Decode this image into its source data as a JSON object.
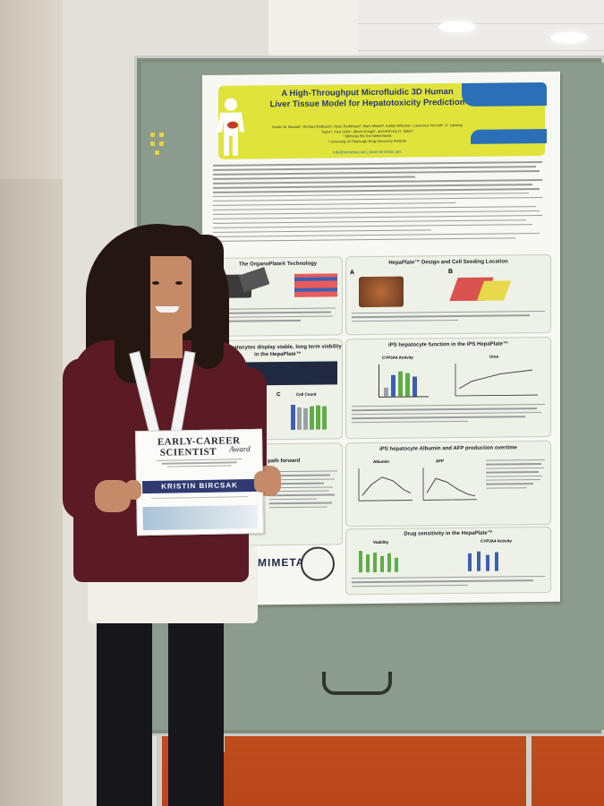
{
  "scene": {
    "colors": {
      "floor": "#c0501f",
      "board": "#8b9b8c",
      "poster_band": "#e0e33a",
      "poster_accent_blue": "#2a6fb8",
      "top": "#5a1b24",
      "cert_band": "#2f3a73"
    }
  },
  "poster": {
    "title_line1": "A High-Throughput Microfluidic 3D Human",
    "title_line2": "Liver Tissue Model for Hepatotoxicity Prediction",
    "authors_line1": "Kristin M. Bircsak¹, Richard DeBiasio², Ryan Reddinger², Mark Miedel², Karlijn Wilschut¹, Lawrence Vernetti², D. Lansing",
    "authors_line2": "Taylor², Paul Vulto¹, Albert Gough², and Anthony D. Saleh¹",
    "affil_line1": "¹ Mimetas BV, the Netherlands",
    "affil_line2": "² University of Pittsburgh Drug Discovery Institute",
    "email": "info@mimetas.com, www.mimetas.com",
    "sections": {
      "organoplate": "The OrganoPlate® Technology",
      "hepaplate": "HepaPlate™ Design and Cell Seeding Location",
      "viability": "iPS hepatocytes display stable, long term viability in the HepaPlate™",
      "function": "iPS hepatocyte function in the iPS HepaPlate™",
      "albumin": "iPS hepatocyte Albumin and AFP production overtime",
      "path": "path forward",
      "drug": "Drug sensitivity in the HepaPlate™"
    },
    "labels": {
      "cyp3a4": "CYP3A4 Activity",
      "urea": "Urea",
      "cellcount": "Cell Count",
      "albumin": "Albumin",
      "afp": "AFP",
      "viability": "Viability",
      "cyp3a4_2": "CYP3A4 Activity",
      "a": "A",
      "b": "B",
      "c": "C"
    },
    "logo": "MIMETAS"
  },
  "certificate": {
    "line1": "EARLY-CAREER",
    "line2": "SCIENTIST",
    "award": "Award",
    "name": "KRISTIN BIRCSAK"
  }
}
